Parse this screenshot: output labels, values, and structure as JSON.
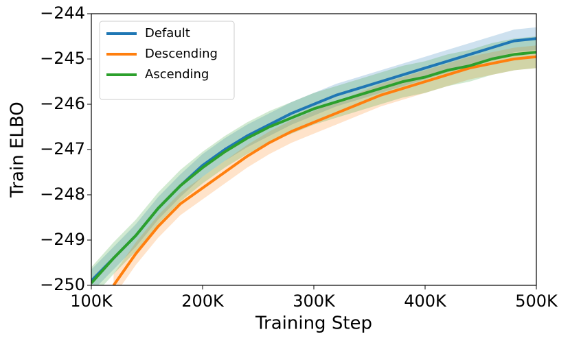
{
  "chart_data": {
    "type": "line",
    "x_label": "Training Step",
    "y_label": "Train ELBO",
    "x": [
      100000,
      120000,
      140000,
      160000,
      180000,
      200000,
      220000,
      240000,
      260000,
      280000,
      300000,
      320000,
      340000,
      360000,
      380000,
      400000,
      420000,
      440000,
      460000,
      480000,
      500000
    ],
    "series": [
      {
        "name": "Default",
        "color": "#1f77b4",
        "values": [
          -249.9,
          -249.4,
          -248.9,
          -248.3,
          -247.8,
          -247.35,
          -247.0,
          -246.7,
          -246.45,
          -246.2,
          -246.0,
          -245.8,
          -245.65,
          -245.5,
          -245.35,
          -245.2,
          -245.05,
          -244.9,
          -244.75,
          -244.6,
          -244.55
        ],
        "lower": [
          -250.15,
          -249.65,
          -249.15,
          -248.55,
          -248.05,
          -247.6,
          -247.25,
          -246.95,
          -246.7,
          -246.45,
          -246.25,
          -246.05,
          -245.9,
          -245.75,
          -245.6,
          -245.45,
          -245.3,
          -245.15,
          -245.0,
          -244.85,
          -244.8
        ],
        "upper": [
          -249.65,
          -249.15,
          -248.65,
          -248.05,
          -247.55,
          -247.1,
          -246.75,
          -246.45,
          -246.2,
          -245.95,
          -245.75,
          -245.55,
          -245.4,
          -245.25,
          -245.1,
          -244.95,
          -244.8,
          -244.65,
          -244.5,
          -244.35,
          -244.3
        ]
      },
      {
        "name": "Descending",
        "color": "#ff7f0e",
        "values": [
          null,
          -250.0,
          -249.3,
          -248.7,
          -248.2,
          -247.85,
          -247.5,
          -247.15,
          -246.85,
          -246.6,
          -246.4,
          -246.2,
          -246.0,
          -245.8,
          -245.65,
          -245.5,
          -245.35,
          -245.2,
          -245.1,
          -245.0,
          -244.95
        ],
        "lower": [
          null,
          -250.25,
          -249.55,
          -248.95,
          -248.45,
          -248.1,
          -247.75,
          -247.4,
          -247.1,
          -246.85,
          -246.65,
          -246.45,
          -246.25,
          -246.05,
          -245.9,
          -245.75,
          -245.6,
          -245.45,
          -245.35,
          -245.25,
          -245.2
        ],
        "upper": [
          null,
          -249.75,
          -249.05,
          -248.45,
          -247.95,
          -247.6,
          -247.25,
          -246.9,
          -246.6,
          -246.35,
          -246.15,
          -245.95,
          -245.75,
          -245.55,
          -245.4,
          -245.25,
          -245.1,
          -244.95,
          -244.85,
          -244.75,
          -244.7
        ]
      },
      {
        "name": "Ascending",
        "color": "#2ca02c",
        "values": [
          -249.95,
          -249.4,
          -248.9,
          -248.3,
          -247.8,
          -247.4,
          -247.05,
          -246.75,
          -246.5,
          -246.3,
          -246.1,
          -245.95,
          -245.8,
          -245.65,
          -245.5,
          -245.4,
          -245.25,
          -245.15,
          -245.0,
          -244.9,
          -244.85
        ],
        "lower": [
          -250.3,
          -249.75,
          -249.25,
          -248.65,
          -248.15,
          -247.75,
          -247.4,
          -247.1,
          -246.85,
          -246.65,
          -246.45,
          -246.3,
          -246.15,
          -246.0,
          -245.85,
          -245.75,
          -245.6,
          -245.5,
          -245.35,
          -245.25,
          -245.2
        ],
        "upper": [
          -249.6,
          -249.05,
          -248.55,
          -247.95,
          -247.45,
          -247.05,
          -246.7,
          -246.4,
          -246.15,
          -245.95,
          -245.75,
          -245.6,
          -245.45,
          -245.3,
          -245.15,
          -245.05,
          -244.9,
          -244.8,
          -244.65,
          -244.55,
          -244.5
        ]
      }
    ],
    "xlim": [
      100000,
      500000
    ],
    "xticks": [
      {
        "value": 100000,
        "label": "100K"
      },
      {
        "value": 200000,
        "label": "200K"
      },
      {
        "value": 300000,
        "label": "300K"
      },
      {
        "value": 400000,
        "label": "400K"
      },
      {
        "value": 500000,
        "label": "500K"
      }
    ],
    "ylim": [
      -250,
      -244
    ],
    "yticks": [
      {
        "value": -250,
        "label": "−250"
      },
      {
        "value": -249,
        "label": "−249"
      },
      {
        "value": -248,
        "label": "−248"
      },
      {
        "value": -247,
        "label": "−247"
      },
      {
        "value": -246,
        "label": "−246"
      },
      {
        "value": -245,
        "label": "−245"
      },
      {
        "value": -244,
        "label": "−244"
      }
    ],
    "legend": "upper left",
    "grid": false
  }
}
